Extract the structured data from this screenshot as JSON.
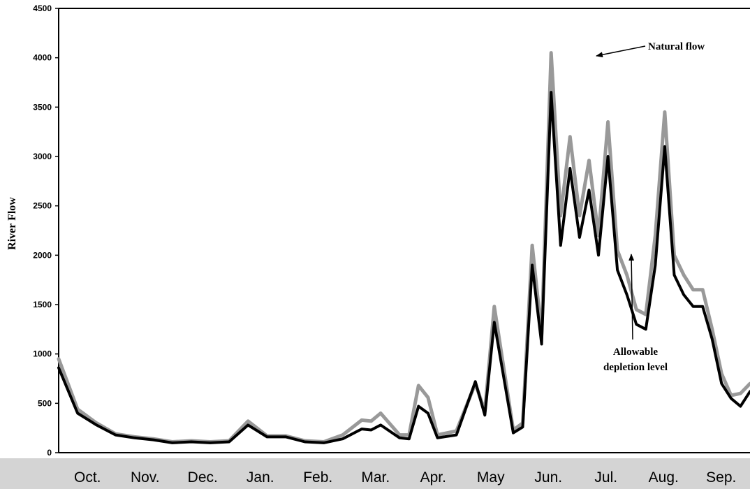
{
  "chart_data": {
    "type": "line",
    "ylabel": "River Flow",
    "xlabel": "",
    "ylim": [
      0,
      4500
    ],
    "yticks": [
      0,
      500,
      1000,
      1500,
      2000,
      2500,
      3000,
      3500,
      4000,
      4500
    ],
    "months": [
      "Oct.",
      "Nov.",
      "Dec.",
      "Jan.",
      "Feb.",
      "Mar.",
      "Apr.",
      "May",
      "Jun.",
      "Jul.",
      "Aug.",
      "Sep."
    ],
    "x_days": [
      0,
      10,
      20,
      30,
      40,
      50,
      60,
      70,
      80,
      90,
      100,
      110,
      120,
      130,
      140,
      150,
      160,
      165,
      170,
      180,
      185,
      190,
      195,
      200,
      210,
      220,
      225,
      230,
      240,
      245,
      250,
      255,
      260,
      265,
      270,
      275,
      280,
      285,
      290,
      295,
      300,
      305,
      310,
      315,
      320,
      325,
      330,
      335,
      340,
      345,
      350,
      355,
      360,
      365
    ],
    "grid": false,
    "legend": "none",
    "annotations": [
      {
        "text": "Natural flow"
      },
      {
        "text": "Allowable depletion level"
      }
    ],
    "series": [
      {
        "color": "#999999",
        "values": [
          950,
          440,
          300,
          190,
          160,
          140,
          110,
          120,
          110,
          120,
          320,
          170,
          170,
          120,
          110,
          180,
          330,
          320,
          400,
          180,
          180,
          680,
          560,
          180,
          220,
          700,
          420,
          1480,
          230,
          300,
          2100,
          1200,
          4050,
          2400,
          3200,
          2400,
          2960,
          2200,
          3350,
          2050,
          1800,
          1450,
          1400,
          2200,
          3450,
          2000,
          1800,
          1650,
          1650,
          1250,
          800,
          580,
          600,
          700
        ]
      },
      {
        "color": "#000000",
        "values": [
          860,
          400,
          280,
          180,
          150,
          130,
          100,
          110,
          100,
          110,
          280,
          160,
          160,
          110,
          100,
          140,
          240,
          230,
          280,
          150,
          140,
          470,
          400,
          150,
          180,
          720,
          380,
          1320,
          200,
          260,
          1900,
          1100,
          3650,
          2100,
          2880,
          2180,
          2660,
          2000,
          3000,
          1850,
          1600,
          1300,
          1250,
          1900,
          3100,
          1800,
          1600,
          1480,
          1480,
          1150,
          700,
          550,
          470,
          620
        ]
      }
    ]
  }
}
